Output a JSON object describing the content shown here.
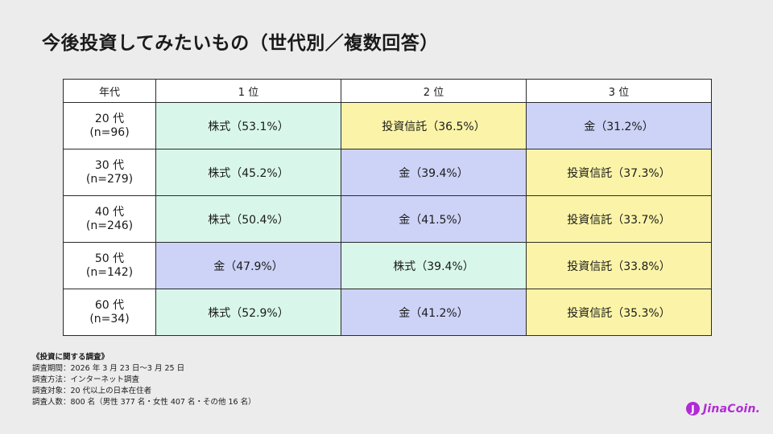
{
  "page": {
    "title": "今後投資してみたいもの（世代別／複数回答）"
  },
  "colors": {
    "株式": "#d8f7ea",
    "投資信託": "#fbf4a8",
    "金": "#cdd3f7",
    "brand": "#b12bd6"
  },
  "table": {
    "headers": [
      "年代",
      "1 位",
      "2 位",
      "3 位"
    ],
    "rows": [
      {
        "age": "20 代",
        "n": "(n=96)",
        "cells": [
          {
            "label": "株式（53.1%）",
            "item": "株式"
          },
          {
            "label": "投資信託（36.5%）",
            "item": "投資信託"
          },
          {
            "label": "金（31.2%）",
            "item": "金"
          }
        ]
      },
      {
        "age": "30 代",
        "n": "(n=279)",
        "cells": [
          {
            "label": "株式（45.2%）",
            "item": "株式"
          },
          {
            "label": "金（39.4%）",
            "item": "金"
          },
          {
            "label": "投資信託（37.3%）",
            "item": "投資信託"
          }
        ]
      },
      {
        "age": "40 代",
        "n": "(n=246)",
        "cells": [
          {
            "label": "株式（50.4%）",
            "item": "株式"
          },
          {
            "label": "金（41.5%）",
            "item": "金"
          },
          {
            "label": "投資信託（33.7%）",
            "item": "投資信託"
          }
        ]
      },
      {
        "age": "50 代",
        "n": "(n=142)",
        "cells": [
          {
            "label": "金（47.9%）",
            "item": "金"
          },
          {
            "label": "株式（39.4%）",
            "item": "株式"
          },
          {
            "label": "投資信託（33.8%）",
            "item": "投資信託"
          }
        ]
      },
      {
        "age": "60 代",
        "n": "(n=34)",
        "cells": [
          {
            "label": "株式（52.9%）",
            "item": "株式"
          },
          {
            "label": "金（41.2%）",
            "item": "金"
          },
          {
            "label": "投資信託（35.3%）",
            "item": "投資信託"
          }
        ]
      }
    ]
  },
  "footnote": {
    "heading": "《投資に関する調査》",
    "lines": [
      "調査期間：2026 年 3 月 23 日～3 月 25 日",
      "調査方法：インターネット調査",
      "調査対象：20 代以上の日本在住者",
      "調査人数：800 名（男性 377 名・女性 407 名・その他 16 名）"
    ]
  },
  "logo": {
    "mark": "J",
    "text": "JinaCoin.",
    "icon": "jinacoin-logo-icon"
  }
}
